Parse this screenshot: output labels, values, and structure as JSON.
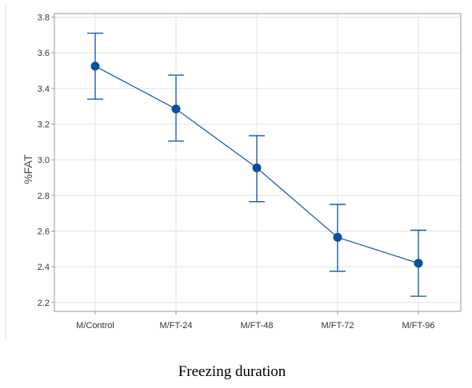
{
  "chart_data": {
    "type": "line",
    "title": "",
    "xlabel": "Freezing duration",
    "ylabel": "%FAT",
    "categories": [
      "M/Control",
      "M/FT-24",
      "M/FT-48",
      "M/FT-72",
      "M/FT-96"
    ],
    "series": [
      {
        "values": [
          3.525,
          3.285,
          2.955,
          2.565,
          2.42
        ],
        "error_upper": [
          3.71,
          3.475,
          3.135,
          2.75,
          2.605
        ],
        "error_lower": [
          3.34,
          3.105,
          2.765,
          2.375,
          2.235
        ]
      }
    ],
    "ylim": [
      2.15,
      3.82
    ],
    "yticks": [
      "2.2",
      "2.4",
      "2.6",
      "2.8",
      "3.0",
      "3.2",
      "3.4",
      "3.6",
      "3.8"
    ],
    "grid": true,
    "legend": "none",
    "colors": {
      "line": "#1f5fa8",
      "marker": "#0b4f9f",
      "grid": "#e3e3e3",
      "frame": "#9a9a9a",
      "tick_text": "#333333",
      "ylabel_text": "#4a4a4a"
    }
  }
}
